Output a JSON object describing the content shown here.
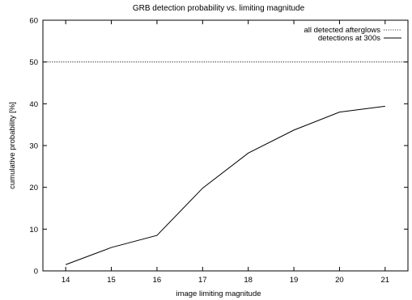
{
  "chart_data": {
    "type": "line",
    "title": "GRB detection probability vs. limiting magnitude",
    "xlabel": "image limiting magnitude",
    "ylabel": "cumulative probability [%]",
    "xlim": [
      13.5,
      21.5
    ],
    "ylim": [
      0,
      60
    ],
    "xticks": [
      "14",
      "15",
      "16",
      "17",
      "18",
      "19",
      "20",
      "21"
    ],
    "yticks": [
      "0",
      "10",
      "20",
      "30",
      "40",
      "50",
      "60"
    ],
    "grid": false,
    "legend_position": "top-right",
    "series": [
      {
        "name": "all detected afterglows",
        "style": "dotted",
        "x": [
          13.5,
          21.5
        ],
        "y": [
          50,
          50
        ]
      },
      {
        "name": "detections at 300s",
        "style": "solid",
        "x": [
          14,
          15,
          16,
          17,
          18,
          19,
          20,
          21
        ],
        "y": [
          1.5,
          5.6,
          8.5,
          19.8,
          28.2,
          33.7,
          38.0,
          39.4
        ]
      }
    ],
    "colors": {
      "line": "#000000",
      "axis": "#000000",
      "background": "#ffffff"
    }
  }
}
